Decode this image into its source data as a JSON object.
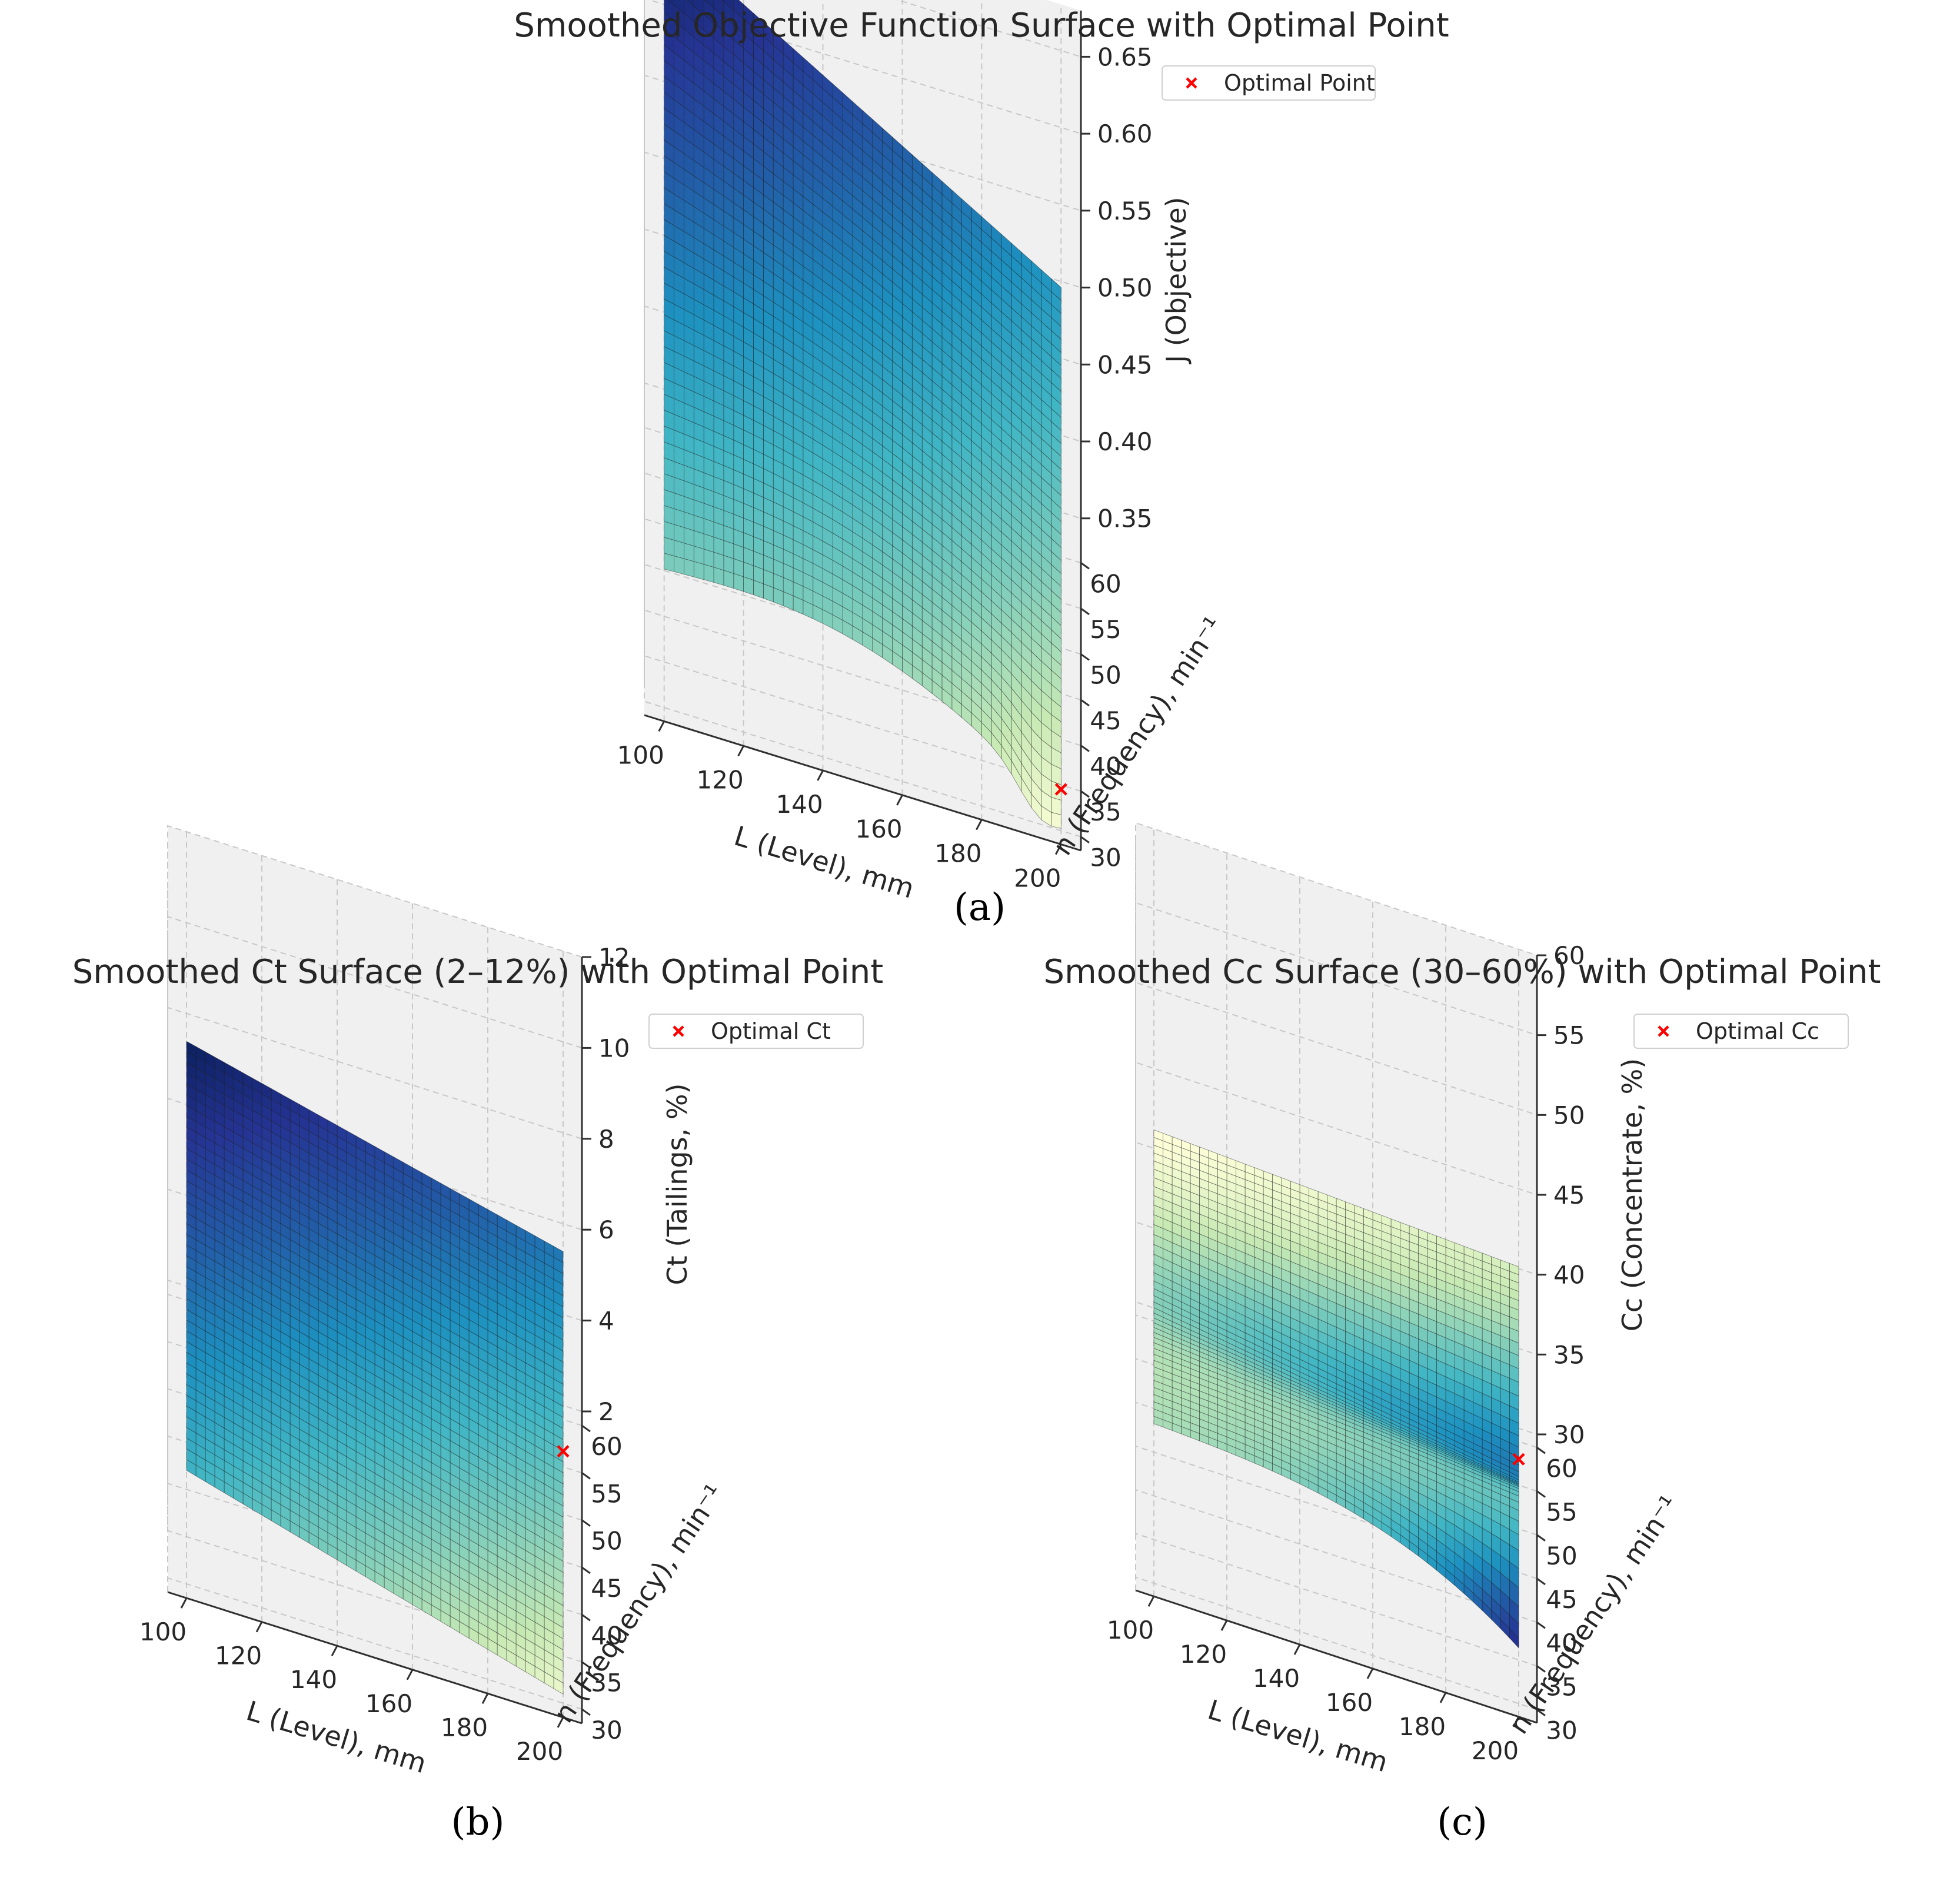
{
  "colors": {
    "pane": "#f0f0f0",
    "grid": "#c8c8c8",
    "marker": "#ff0000",
    "colormap": [
      "#ffffd9",
      "#c7e9b4",
      "#7fcdbb",
      "#41b6c4",
      "#1d91c0",
      "#225ea8",
      "#253494",
      "#081d58"
    ]
  },
  "chart_data": [
    {
      "panel": "a",
      "caption": "(a)",
      "type": "surface3d",
      "title": "Smoothed Objective Function Surface with Optimal Point",
      "xlabel": "L (Level), mm",
      "ylabel": "n (Frequency), min⁻¹",
      "zlabel": "J (Objective)",
      "xticks": [
        "100",
        "120",
        "140",
        "160",
        "180",
        "200"
      ],
      "yticks": [
        "30",
        "35",
        "40",
        "45",
        "50",
        "55",
        "60"
      ],
      "zticks": [
        "0.35",
        "0.40",
        "0.45",
        "0.50",
        "0.55",
        "0.60",
        "0.65"
      ],
      "xlim": [
        95,
        205
      ],
      "ylim": [
        28.5,
        61.5
      ],
      "zlim": [
        0.33,
        0.68
      ],
      "legend": "Optimal Point",
      "corners": {
        "L100_n30": 0.42,
        "L200_n30": 0.345,
        "L100_n60": 0.655,
        "L200_n60": 0.505
      },
      "optimum": {
        "L": 200,
        "n": 32,
        "J": 0.345
      }
    },
    {
      "panel": "b",
      "caption": "(b)",
      "type": "surface3d",
      "title": "Smoothed Ct Surface (2–12%) with Optimal Point",
      "xlabel": "L (Level), mm",
      "ylabel": "n (Frequency), min⁻¹",
      "zlabel": "Ct (Tailings, %)",
      "xticks": [
        "100",
        "120",
        "140",
        "160",
        "180",
        "200"
      ],
      "yticks": [
        "30",
        "35",
        "40",
        "45",
        "50",
        "55",
        "60"
      ],
      "zticks": [
        "2",
        "4",
        "6",
        "8",
        "10",
        "12"
      ],
      "xlim": [
        95,
        205
      ],
      "ylim": [
        28.5,
        61.5
      ],
      "zlim": [
        2,
        12
      ],
      "legend": "Optimal Ct",
      "corners": {
        "L100_n30": 4.5,
        "L200_n30": 2.2,
        "L100_n60": 7.7,
        "L200_n60": 5.7
      },
      "optimum": {
        "L": 200,
        "n": 48,
        "Ct": 3.8
      }
    },
    {
      "panel": "c",
      "caption": "(c)",
      "type": "surface3d",
      "title": "Smoothed Cc Surface (30–60%) with Optimal Point",
      "xlabel": "L (Level), mm",
      "ylabel": "n (Frequency), min⁻¹",
      "zlabel": "Cc (Concentrate, %)",
      "xticks": [
        "100",
        "120",
        "140",
        "160",
        "180",
        "200"
      ],
      "yticks": [
        "30",
        "35",
        "40",
        "45",
        "50",
        "55",
        "60"
      ],
      "zticks": [
        "30",
        "35",
        "40",
        "45",
        "50",
        "55",
        "60"
      ],
      "xlim": [
        95,
        205
      ],
      "ylim": [
        28.5,
        61.5
      ],
      "zlim": [
        30,
        60
      ],
      "legend": "Optimal Cc",
      "corners": {
        "L100_n30": 39.5,
        "L200_n30": 36.5,
        "L100_n60": 39.0,
        "L200_n60": 39.0
      },
      "optimum": {
        "L": 200,
        "n": 47,
        "Cc": 36
      }
    }
  ]
}
